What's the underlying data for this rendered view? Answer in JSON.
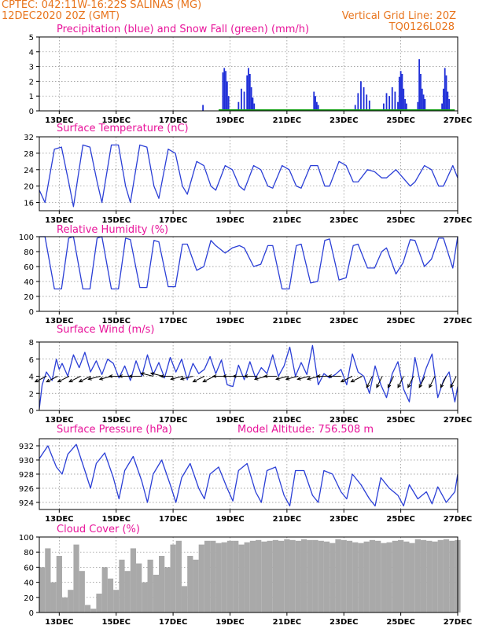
{
  "header": {
    "line1_left": "CPTEC:   042:11W-16:22S   SALINAS (MG)",
    "line2_left": "12DEC2020 20Z (GMT)",
    "line2_right": "Vertical Grid Line: 20Z",
    "line3_right": "TQ0126L028"
  },
  "colors": {
    "header": "#e8741c",
    "titles": "#e8149a",
    "line": "#2b3fd6",
    "precip": "#1f2fd8",
    "snow": "#1aa01a",
    "cloud": "#a9a9a9",
    "arrow": "#000000"
  },
  "x_ticks": [
    "13DEC",
    "15DEC",
    "17DEC",
    "19DEC",
    "21DEC",
    "23DEC",
    "25DEC",
    "27DEC"
  ],
  "x_tick_days": [
    13,
    15,
    17,
    19,
    21,
    23,
    25,
    27
  ],
  "x_range_days": [
    12.3,
    27.0
  ],
  "chart_data": [
    {
      "id": "precip",
      "type": "bar",
      "title": "Precipitation (blue) and Snow Fall (green) (mm/h)",
      "ylim": [
        0,
        5
      ],
      "yticks": [
        0,
        1,
        2,
        3,
        4,
        5
      ],
      "grid": true,
      "series": [
        {
          "name": "Precipitation",
          "color": "#1f2fd8",
          "points": [
            [
              18.05,
              0.4
            ],
            [
              18.75,
              2.6
            ],
            [
              18.8,
              2.9
            ],
            [
              18.85,
              2.7
            ],
            [
              18.9,
              2.0
            ],
            [
              18.95,
              1.0
            ],
            [
              19.3,
              0.6
            ],
            [
              19.4,
              1.5
            ],
            [
              19.5,
              1.3
            ],
            [
              19.6,
              2.4
            ],
            [
              19.65,
              2.9
            ],
            [
              19.7,
              2.5
            ],
            [
              19.75,
              1.6
            ],
            [
              19.8,
              0.9
            ],
            [
              19.85,
              0.5
            ],
            [
              21.95,
              1.3
            ],
            [
              22.0,
              1.0
            ],
            [
              22.05,
              0.6
            ],
            [
              22.1,
              0.4
            ],
            [
              23.4,
              0.4
            ],
            [
              23.5,
              1.2
            ],
            [
              23.6,
              2.0
            ],
            [
              23.7,
              1.6
            ],
            [
              23.8,
              1.1
            ],
            [
              23.9,
              0.7
            ],
            [
              24.4,
              0.5
            ],
            [
              24.5,
              1.2
            ],
            [
              24.6,
              1.0
            ],
            [
              24.7,
              1.6
            ],
            [
              24.8,
              1.3
            ],
            [
              24.9,
              0.6
            ],
            [
              24.95,
              2.3
            ],
            [
              25.0,
              2.7
            ],
            [
              25.05,
              2.5
            ],
            [
              25.1,
              1.5
            ],
            [
              25.15,
              0.8
            ],
            [
              25.2,
              0.5
            ],
            [
              25.6,
              0.6
            ],
            [
              25.65,
              3.5
            ],
            [
              25.7,
              2.5
            ],
            [
              25.75,
              1.5
            ],
            [
              25.8,
              1.1
            ],
            [
              25.85,
              0.8
            ],
            [
              26.45,
              0.5
            ],
            [
              26.5,
              1.5
            ],
            [
              26.55,
              2.9
            ],
            [
              26.6,
              2.4
            ],
            [
              26.65,
              1.3
            ],
            [
              26.7,
              0.8
            ]
          ]
        },
        {
          "name": "Snow Fall",
          "color": "#1aa01a",
          "points": [
            [
              18.6,
              0.05
            ],
            [
              26.9,
              0.05
            ]
          ]
        }
      ]
    },
    {
      "id": "temp",
      "type": "line",
      "title": "Surface Temperature (nC)",
      "ylim": [
        14,
        32
      ],
      "yticks": [
        16,
        20,
        24,
        28,
        32
      ],
      "grid": true,
      "x": [
        12.3,
        12.5,
        12.83,
        13.08,
        13.33,
        13.5,
        13.83,
        14.08,
        14.33,
        14.5,
        14.83,
        15.08,
        15.33,
        15.5,
        15.83,
        16.08,
        16.33,
        16.5,
        16.83,
        17.08,
        17.33,
        17.5,
        17.83,
        18.08,
        18.33,
        18.5,
        18.83,
        19.08,
        19.33,
        19.5,
        19.83,
        20.08,
        20.33,
        20.5,
        20.83,
        21.08,
        21.33,
        21.5,
        21.83,
        22.08,
        22.33,
        22.5,
        22.83,
        23.08,
        23.33,
        23.5,
        23.83,
        24.08,
        24.33,
        24.5,
        24.83,
        25.08,
        25.33,
        25.5,
        25.83,
        26.08,
        26.33,
        26.5,
        26.83,
        27.0
      ],
      "y": [
        19,
        16,
        29,
        29.5,
        21,
        15,
        30,
        29.5,
        21,
        16,
        30,
        30,
        20,
        16,
        30,
        29.5,
        20,
        17,
        29,
        28,
        20,
        18,
        26,
        25,
        20,
        19,
        25,
        24,
        20,
        19,
        25,
        24,
        20,
        19.5,
        25,
        24,
        20,
        19.5,
        25,
        25,
        20,
        20,
        26,
        25,
        21,
        21,
        24,
        23.5,
        22,
        22,
        24,
        22,
        20,
        21,
        25,
        24,
        20,
        20,
        25,
        22
      ]
    },
    {
      "id": "rh",
      "type": "line",
      "title": "Relative Humidity (%)",
      "ylim": [
        0,
        100
      ],
      "yticks": [
        0,
        20,
        40,
        60,
        80,
        100
      ],
      "grid": true,
      "x": [
        12.3,
        12.5,
        12.83,
        13.08,
        13.33,
        13.5,
        13.83,
        14.08,
        14.33,
        14.5,
        14.83,
        15.08,
        15.33,
        15.5,
        15.83,
        16.08,
        16.33,
        16.5,
        16.83,
        17.08,
        17.33,
        17.5,
        17.83,
        18.08,
        18.33,
        18.5,
        18.83,
        19.08,
        19.33,
        19.5,
        19.83,
        20.08,
        20.33,
        20.5,
        20.83,
        21.08,
        21.33,
        21.5,
        21.83,
        22.08,
        22.33,
        22.5,
        22.83,
        23.08,
        23.33,
        23.5,
        23.83,
        24.08,
        24.33,
        24.5,
        24.83,
        25.08,
        25.33,
        25.5,
        25.83,
        26.08,
        26.33,
        26.5,
        26.83,
        27.0
      ],
      "y": [
        100,
        100,
        30,
        30,
        98,
        100,
        30,
        30,
        98,
        100,
        30,
        30,
        98,
        96,
        32,
        32,
        95,
        93,
        33,
        33,
        90,
        90,
        55,
        60,
        95,
        88,
        78,
        85,
        88,
        85,
        60,
        63,
        88,
        88,
        30,
        30,
        88,
        90,
        38,
        40,
        95,
        97,
        42,
        45,
        88,
        90,
        58,
        58,
        80,
        85,
        50,
        65,
        96,
        95,
        60,
        70,
        98,
        98,
        58,
        100
      ]
    },
    {
      "id": "wind",
      "type": "line",
      "title": "Surface Wind (m/s)",
      "ylim": [
        0,
        8
      ],
      "yticks": [
        0,
        2,
        4,
        6,
        8
      ],
      "grid": true,
      "x": [
        12.3,
        12.4,
        12.55,
        12.75,
        12.9,
        13.0,
        13.1,
        13.3,
        13.5,
        13.7,
        13.9,
        14.1,
        14.3,
        14.5,
        14.7,
        14.9,
        15.1,
        15.3,
        15.5,
        15.7,
        15.9,
        16.1,
        16.3,
        16.5,
        16.7,
        16.9,
        17.1,
        17.3,
        17.5,
        17.7,
        17.9,
        18.1,
        18.3,
        18.5,
        18.7,
        18.9,
        19.1,
        19.3,
        19.5,
        19.7,
        19.9,
        20.1,
        20.3,
        20.5,
        20.7,
        20.9,
        21.1,
        21.3,
        21.5,
        21.7,
        21.9,
        22.1,
        22.3,
        22.5,
        22.7,
        22.9,
        23.1,
        23.3,
        23.5,
        23.7,
        23.9,
        24.1,
        24.3,
        24.5,
        24.7,
        24.9,
        25.1,
        25.3,
        25.5,
        25.7,
        25.9,
        26.1,
        26.3,
        26.5,
        26.7,
        26.9,
        27.0
      ],
      "y": [
        0.2,
        3.0,
        4.5,
        3.5,
        6.0,
        4.8,
        5.5,
        4.0,
        6.5,
        5.0,
        6.8,
        4.5,
        5.8,
        4.2,
        6.0,
        5.5,
        3.8,
        5.2,
        3.5,
        5.8,
        4.0,
        6.5,
        4.2,
        5.6,
        3.8,
        6.2,
        4.5,
        6.0,
        3.6,
        5.5,
        4.3,
        4.8,
        6.3,
        4.3,
        5.9,
        3.0,
        2.8,
        5.3,
        3.6,
        5.7,
        3.8,
        5.0,
        4.3,
        6.5,
        4.0,
        5.2,
        7.4,
        4.0,
        5.6,
        4.2,
        7.6,
        3.0,
        4.3,
        3.8,
        4.2,
        4.8,
        3.0,
        6.6,
        4.5,
        4.0,
        2.0,
        5.2,
        3.0,
        1.5,
        4.3,
        5.7,
        2.5,
        1.0,
        6.2,
        3.0,
        5.0,
        6.6,
        1.5,
        3.5,
        4.5,
        1.0,
        2.8
      ]
    },
    {
      "id": "pressure",
      "type": "line",
      "title": "Surface Pressure (hPa)",
      "annotation": "Model Altitude: 756.508 m",
      "ylim": [
        923,
        933
      ],
      "yticks": [
        924,
        926,
        928,
        930,
        932
      ],
      "grid": true,
      "x": [
        12.3,
        12.6,
        12.9,
        13.1,
        13.3,
        13.6,
        13.9,
        14.1,
        14.3,
        14.6,
        14.9,
        15.1,
        15.3,
        15.6,
        15.9,
        16.1,
        16.3,
        16.6,
        16.9,
        17.1,
        17.3,
        17.6,
        17.9,
        18.1,
        18.3,
        18.6,
        18.9,
        19.1,
        19.3,
        19.6,
        19.9,
        20.1,
        20.3,
        20.6,
        20.9,
        21.1,
        21.3,
        21.6,
        21.9,
        22.1,
        22.3,
        22.6,
        22.9,
        23.1,
        23.3,
        23.6,
        23.9,
        24.1,
        24.3,
        24.6,
        24.9,
        25.1,
        25.3,
        25.6,
        25.9,
        26.1,
        26.3,
        26.6,
        26.9,
        27.0
      ],
      "y": [
        930.2,
        932.0,
        929.0,
        928.0,
        930.8,
        932.2,
        928.5,
        926.0,
        929.5,
        931.0,
        927.5,
        924.5,
        928.5,
        930.5,
        927.0,
        924.0,
        928.0,
        930.0,
        926.5,
        924.0,
        927.5,
        929.5,
        926.0,
        924.5,
        928.0,
        929.0,
        926.0,
        924.2,
        928.5,
        929.5,
        925.5,
        924.0,
        928.5,
        929.0,
        925.0,
        923.5,
        928.5,
        928.5,
        925.0,
        924.0,
        928.5,
        928.0,
        925.5,
        924.5,
        928.0,
        926.5,
        924.5,
        923.5,
        927.5,
        926.0,
        925.0,
        923.5,
        926.5,
        924.5,
        925.5,
        923.8,
        926.2,
        924.0,
        925.5,
        928.0
      ]
    },
    {
      "id": "cloud",
      "type": "bar",
      "title": "Cloud Cover (%)",
      "ylim": [
        0,
        100
      ],
      "yticks": [
        0,
        20,
        40,
        60,
        80,
        100
      ],
      "grid": true,
      "x": [
        12.3,
        12.5,
        12.7,
        12.9,
        13.1,
        13.3,
        13.5,
        13.7,
        13.9,
        14.1,
        14.3,
        14.5,
        14.7,
        14.9,
        15.1,
        15.3,
        15.5,
        15.7,
        15.9,
        16.1,
        16.3,
        16.5,
        16.7,
        16.9,
        17.1,
        17.3,
        17.5,
        17.7,
        17.9,
        18.1,
        18.3,
        18.5,
        18.7,
        18.9,
        19.1,
        19.3,
        19.5,
        19.7,
        19.9,
        20.1,
        20.3,
        20.5,
        20.7,
        20.9,
        21.1,
        21.3,
        21.5,
        21.7,
        21.9,
        22.1,
        22.3,
        22.5,
        22.7,
        22.9,
        23.1,
        23.3,
        23.5,
        23.7,
        23.9,
        24.1,
        24.3,
        24.5,
        24.7,
        24.9,
        25.1,
        25.3,
        25.5,
        25.7,
        25.9,
        26.1,
        26.3,
        26.5,
        26.7,
        26.9
      ],
      "values": [
        60,
        85,
        40,
        75,
        20,
        30,
        90,
        55,
        10,
        5,
        25,
        60,
        45,
        30,
        70,
        55,
        85,
        65,
        40,
        70,
        50,
        75,
        60,
        90,
        95,
        35,
        75,
        70,
        90,
        95,
        95,
        92,
        93,
        95,
        95,
        90,
        93,
        95,
        96,
        94,
        95,
        96,
        95,
        97,
        96,
        95,
        97,
        96,
        96,
        95,
        94,
        92,
        97,
        96,
        95,
        93,
        92,
        94,
        96,
        95,
        92,
        93,
        95,
        96,
        94,
        92,
        97,
        96,
        95,
        94,
        96,
        97,
        95,
        96
      ]
    }
  ],
  "wind_arrows": {
    "x": [
      12.55,
      12.95,
      13.35,
      13.75,
      14.1,
      14.45,
      14.85,
      15.2,
      15.55,
      15.9,
      16.3,
      16.65,
      17.0,
      17.35,
      17.7,
      18.1,
      18.45,
      18.85,
      19.2,
      19.55,
      19.95,
      20.3,
      20.65,
      21.05,
      21.4,
      21.8,
      22.15,
      22.5,
      22.9,
      23.3,
      23.65,
      24.0,
      24.35,
      24.75,
      25.1,
      25.45,
      25.85,
      26.2,
      26.6,
      26.95
    ],
    "u": [
      -2,
      -2,
      -2,
      -2,
      -2,
      -2,
      -2,
      -2,
      -2,
      -2,
      -2,
      -2,
      -2,
      -2,
      -2,
      -2,
      -2,
      -2,
      -2,
      -2,
      -2,
      -2,
      -2,
      -2,
      -2,
      -2,
      -2,
      -2,
      -2,
      -2,
      -2,
      -1,
      -1,
      -1,
      -1,
      -1,
      -1,
      -1,
      -1,
      -1
    ],
    "v": [
      -1,
      -1,
      -1,
      -1,
      -1,
      -0.5,
      -0.5,
      0,
      0,
      0,
      0.5,
      0.5,
      0,
      -0.5,
      -0.5,
      -1,
      -1,
      0,
      0,
      0,
      0,
      -0.5,
      0,
      -0.5,
      -0.5,
      -0.5,
      -0.5,
      0,
      0,
      -1,
      -1,
      -2,
      -2,
      -2,
      -2,
      -2,
      -2,
      -2,
      -2,
      -2
    ]
  }
}
